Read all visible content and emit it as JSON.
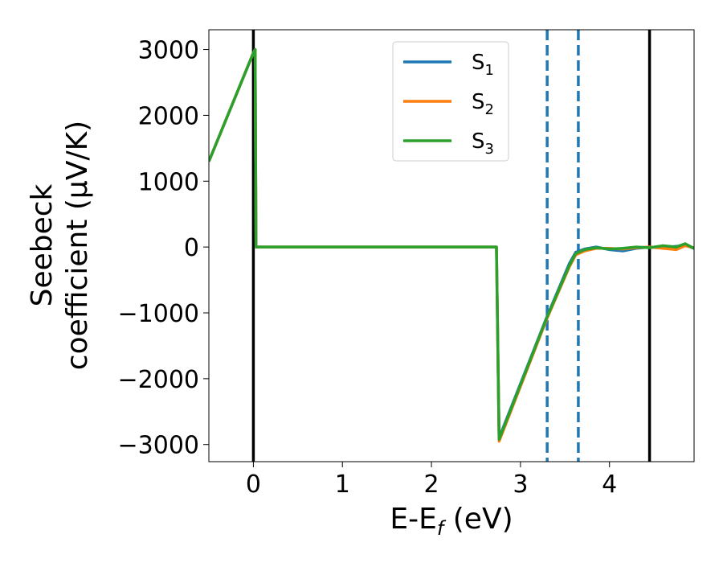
{
  "chart_data": {
    "type": "line",
    "xlabel": "E-E",
    "xlabel_sub": "f",
    "xlabel_unit": " (eV)",
    "ylabel_line1": "Seebeck",
    "ylabel_line2": "coefficient  (μV/K)",
    "xlim": [
      -0.5,
      4.95
    ],
    "ylim": [
      -3260,
      3300
    ],
    "xticks": [
      0,
      1,
      2,
      3,
      4
    ],
    "xtick_labels": [
      "0",
      "1",
      "2",
      "3",
      "4"
    ],
    "yticks": [
      3000,
      2000,
      1000,
      0,
      -1000,
      -2000,
      -3000
    ],
    "ytick_labels": [
      "3000",
      "2000",
      "1000",
      "0",
      "−1000",
      "−2000",
      "−3000"
    ],
    "legend_placement": "upper-center",
    "legend": [
      {
        "base": "S",
        "sub": "1",
        "color": "#1f77b4"
      },
      {
        "base": "S",
        "sub": "2",
        "color": "#ff7f0e"
      },
      {
        "base": "S",
        "sub": "3",
        "color": "#2ca02c"
      }
    ],
    "series": [
      {
        "color": "#1f77b4",
        "x": [
          -0.5,
          0.0,
          0.02,
          0.03,
          2.72,
          2.73,
          2.76,
          3.3,
          3.55,
          3.62,
          3.72,
          3.85,
          4.0,
          4.15,
          4.3,
          4.45,
          4.6,
          4.75,
          4.85,
          4.95
        ],
        "y": [
          1300,
          2950,
          3000,
          0,
          0,
          0,
          -2900,
          -1050,
          -250,
          -80,
          -30,
          0,
          -40,
          -60,
          -20,
          0,
          -10,
          10,
          30,
          -20
        ]
      },
      {
        "color": "#ff7f0e",
        "x": [
          -0.5,
          0.0,
          0.02,
          0.03,
          2.72,
          2.73,
          2.76,
          3.3,
          3.55,
          3.62,
          3.72,
          3.85,
          4.0,
          4.15,
          4.3,
          4.45,
          4.6,
          4.75,
          4.85,
          4.95
        ],
        "y": [
          1300,
          2950,
          3000,
          0,
          0,
          0,
          -2950,
          -1080,
          -300,
          -120,
          -60,
          -20,
          -20,
          -30,
          -10,
          0,
          -20,
          -40,
          20,
          -10
        ]
      },
      {
        "color": "#2ca02c",
        "x": [
          -0.5,
          0.0,
          0.02,
          0.03,
          2.72,
          2.73,
          2.76,
          3.3,
          3.55,
          3.62,
          3.72,
          3.85,
          4.0,
          4.15,
          4.3,
          4.45,
          4.6,
          4.75,
          4.85,
          4.95
        ],
        "y": [
          1300,
          2950,
          3000,
          0,
          0,
          0,
          -2920,
          -1060,
          -280,
          -100,
          -40,
          -10,
          -30,
          -20,
          0,
          -10,
          20,
          0,
          50,
          -20
        ]
      }
    ],
    "vlines": [
      {
        "x": 0.0,
        "color": "#000000",
        "style": "solid"
      },
      {
        "x": 4.45,
        "color": "#000000",
        "style": "solid"
      },
      {
        "x": 3.3,
        "color": "#1f77b4",
        "style": "dashed"
      },
      {
        "x": 3.65,
        "color": "#1f77b4",
        "style": "dashed"
      }
    ],
    "grid": false
  }
}
